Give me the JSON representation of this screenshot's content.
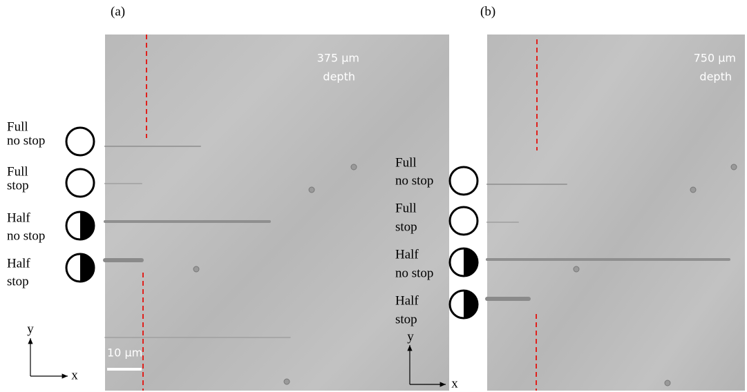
{
  "panels": [
    {
      "label": "(a)",
      "depth_value": "375 µm",
      "depth_word": "depth",
      "rows": [
        [
          "Full",
          "no stop"
        ],
        [
          "Full",
          "stop"
        ],
        [
          "Half",
          "no stop"
        ],
        [
          "Half",
          "stop"
        ]
      ],
      "scale_bar": "10 µm",
      "axis_y": "y",
      "axis_x": "x"
    },
    {
      "label": "(b)",
      "depth_value": "750 µm",
      "depth_word": "depth",
      "rows": [
        [
          "Full",
          "no stop"
        ],
        [
          "Full",
          "stop"
        ],
        [
          "Half",
          "no stop"
        ],
        [
          "Half",
          "stop"
        ]
      ],
      "axis_y": "y",
      "axis_x": "x"
    }
  ]
}
